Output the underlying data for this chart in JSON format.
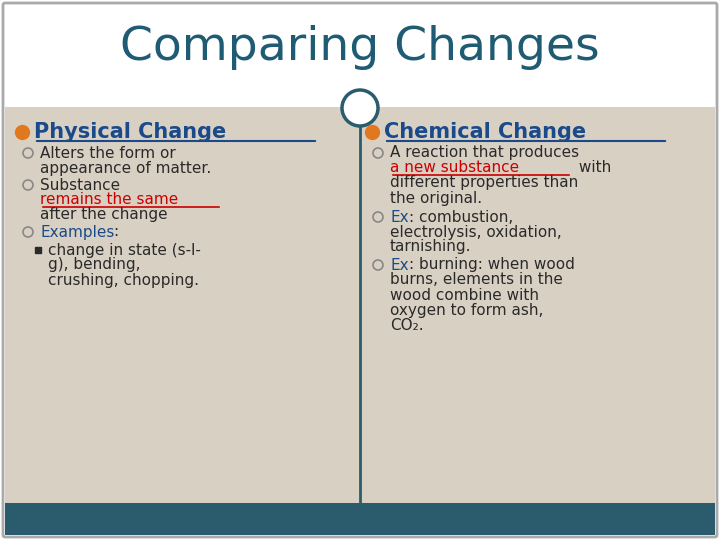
{
  "title": "Comparing Changes",
  "title_color": "#1f5c73",
  "bg_color": "#ffffff",
  "panel_bg": "#d9d0c4",
  "bottom_bar_color": "#2a5c6e",
  "divider_color": "#2a5c6e",
  "bullet_color_orange": "#e07820",
  "bullet_color_blue": "#1a4a8a",
  "red_color": "#cc0000",
  "blue_color": "#1a4a8a",
  "dark_text": "#2a2a2a",
  "circle_color": "#2a5c6e",
  "left_title": "Physical Change",
  "right_title": "Chemical Change"
}
